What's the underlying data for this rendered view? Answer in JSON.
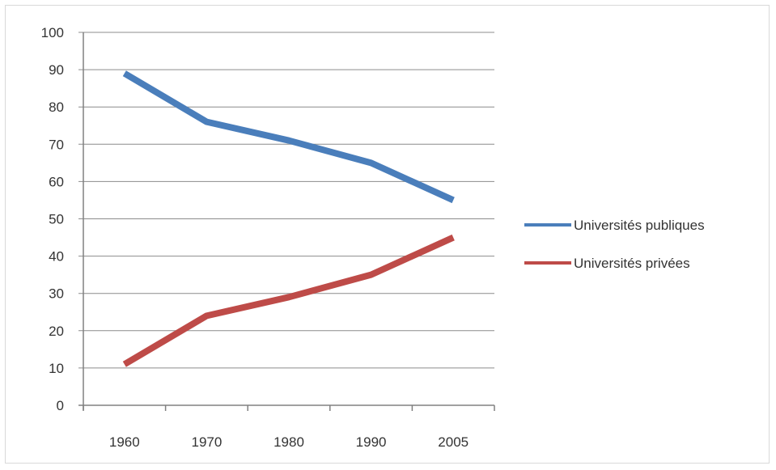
{
  "chart_data": {
    "type": "line",
    "categories": [
      "1960",
      "1970",
      "1980",
      "1990",
      "2005"
    ],
    "y_ticks": [
      "0",
      "10",
      "20",
      "30",
      "40",
      "50",
      "60",
      "70",
      "80",
      "90",
      "100"
    ],
    "ylim": [
      0,
      100
    ],
    "grid": "horizontal",
    "legend_position": "right",
    "series": [
      {
        "name": "Universités publiques",
        "color": "#4a7ebb",
        "values": [
          89,
          76,
          71,
          65,
          55
        ]
      },
      {
        "name": "Universités privées",
        "color": "#be4b48",
        "values": [
          11,
          24,
          29,
          35,
          45
        ]
      }
    ]
  }
}
